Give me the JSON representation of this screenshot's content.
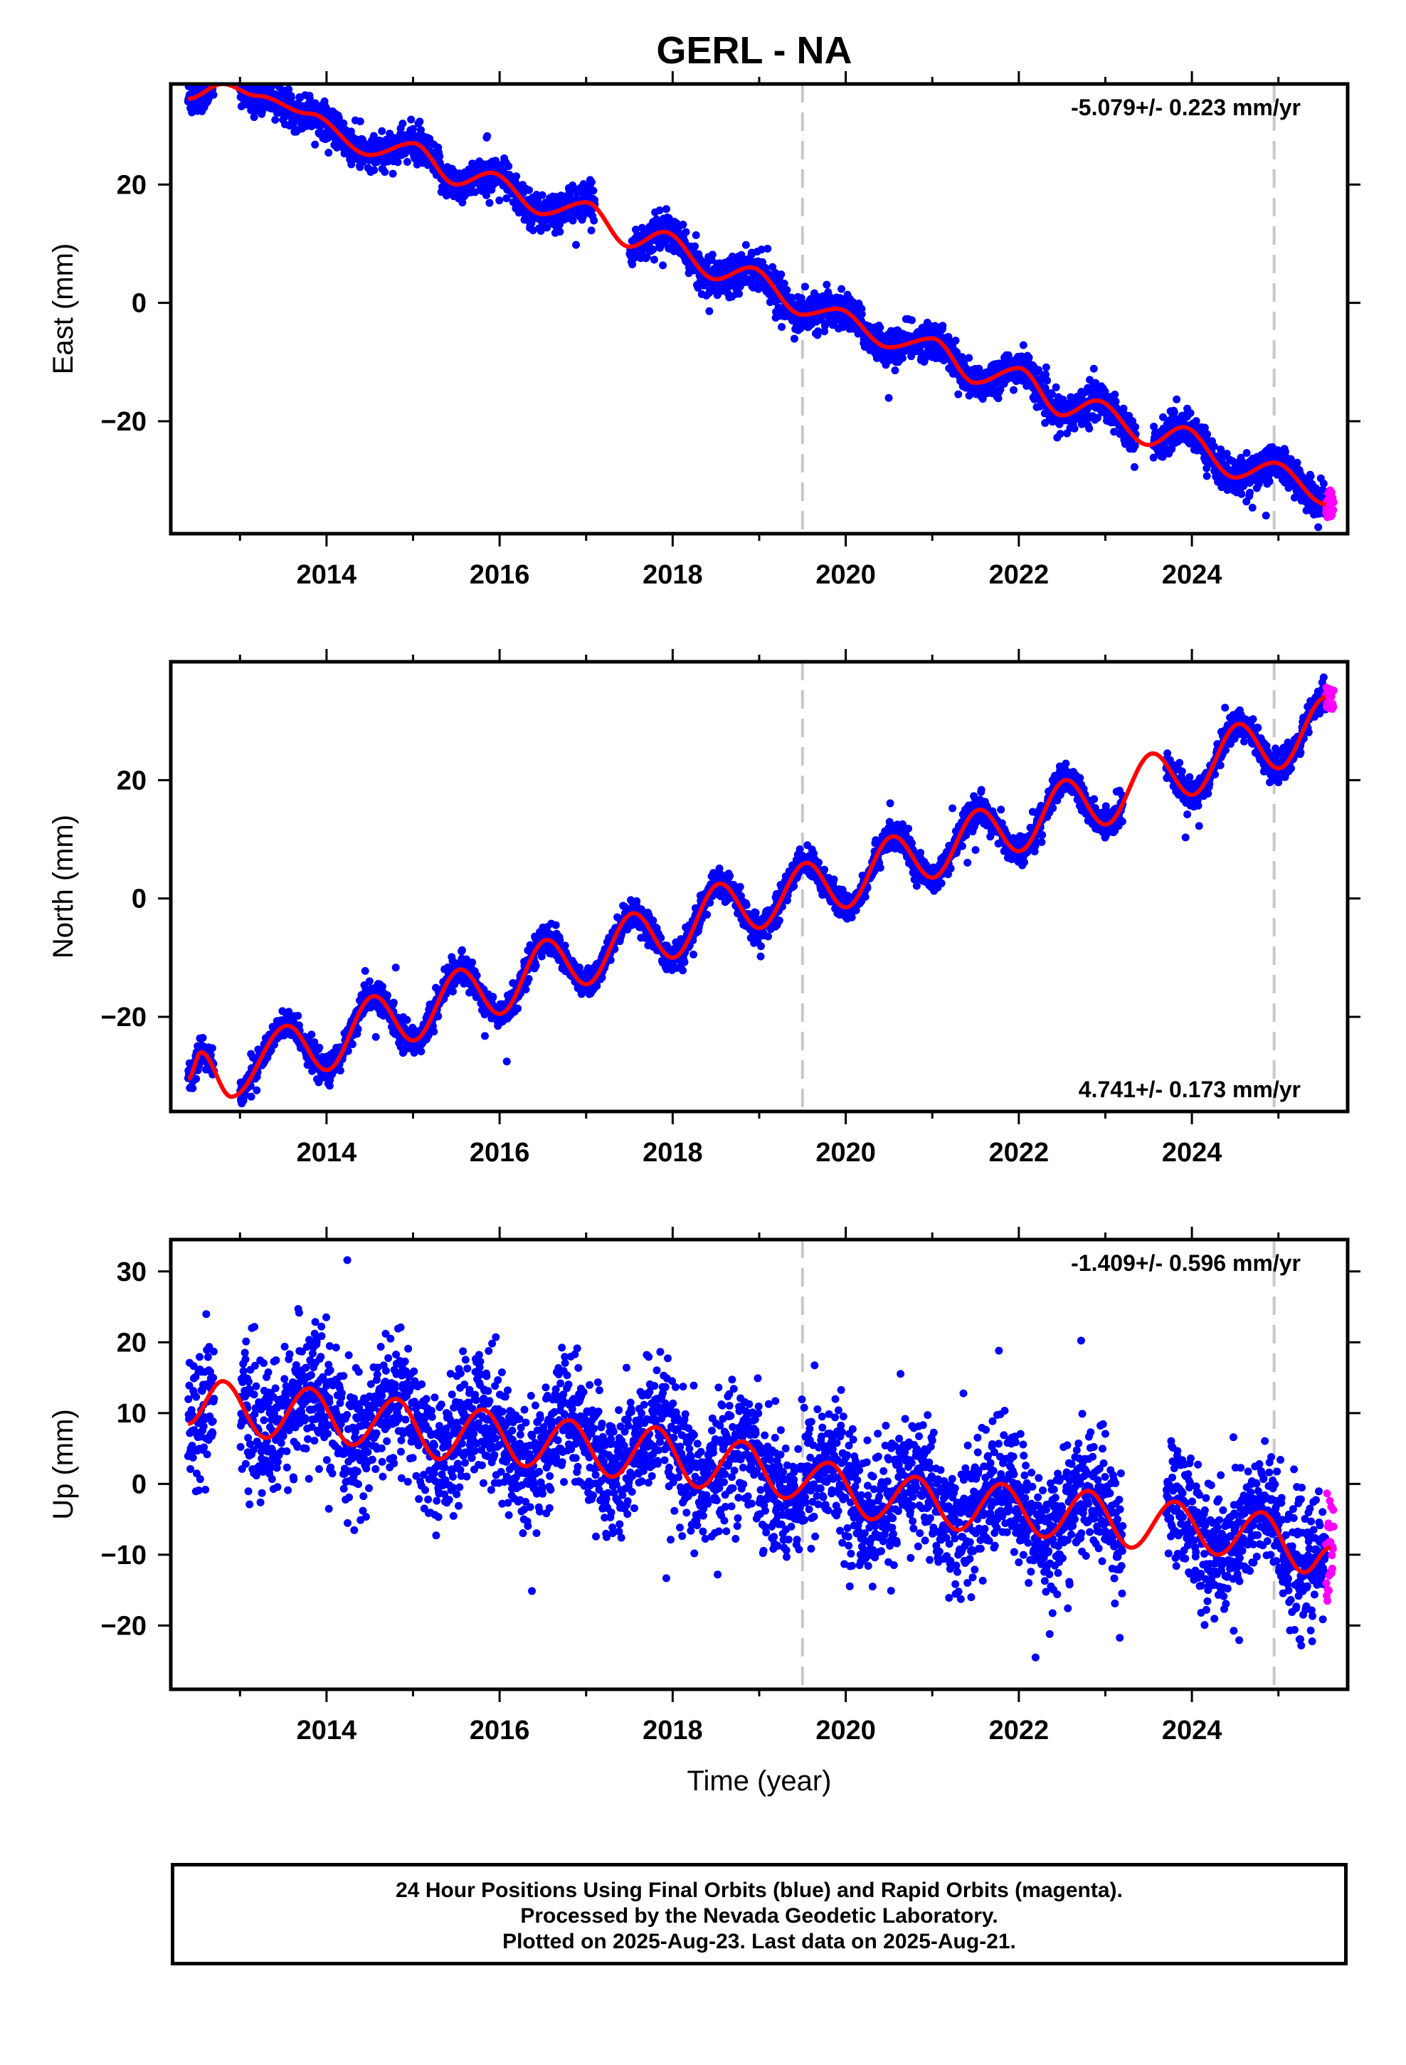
{
  "title": "GERL - NA",
  "footer": {
    "line1": "24 Hour Positions Using Final Orbits (blue) and Rapid Orbits (magenta).",
    "line2": "Processed by the Nevada Geodetic Laboratory.",
    "line3": "Plotted on 2025-Aug-23. Last data on 2025-Aug-21."
  },
  "colors": {
    "final": "#0000ff",
    "rapid": "#ff00ff",
    "model": "#ff0000",
    "event_line": "#c8c8c8"
  },
  "chart_data": [
    {
      "type": "scatter",
      "panel": "east",
      "ylabel": "East (mm)",
      "xlabel": "",
      "rate_label": "-5.079+/- 0.223 mm/yr",
      "rate_position": "top-right",
      "xlim": [
        2012.2,
        2025.8
      ],
      "ylim": [
        -39,
        37
      ],
      "xticks": [
        2014,
        2016,
        2018,
        2020,
        2022,
        2024
      ],
      "yticks": [
        -20,
        0,
        20
      ],
      "event_lines": [
        2019.5,
        2024.95
      ],
      "series": [
        {
          "role": "final-orbits-daily",
          "data_start": 2012.4,
          "data_end": 2025.55,
          "gaps": [
            [
              2012.7,
              2013.0
            ],
            [
              2017.1,
              2017.5
            ],
            [
              2023.35,
              2023.55
            ]
          ],
          "scatter_mm": 1.5
        },
        {
          "role": "rapid-orbits-daily",
          "data_start": 2025.55,
          "data_end": 2025.64
        },
        {
          "role": "model-fit",
          "x": [
            2012.4,
            2012.8,
            2013.2,
            2013.8,
            2014.5,
            2015.0,
            2015.5,
            2015.9,
            2016.5,
            2017.0,
            2017.5,
            2017.9,
            2018.5,
            2018.9,
            2019.5,
            2019.9,
            2020.5,
            2021.0,
            2021.5,
            2022.0,
            2022.5,
            2022.9,
            2023.5,
            2023.9,
            2024.5,
            2024.95,
            2025.55
          ],
          "y": [
            34.5,
            37,
            35,
            32,
            25,
            27,
            20,
            22,
            15,
            17,
            9.5,
            12,
            4,
            6,
            -2,
            -1,
            -7.5,
            -6,
            -13.5,
            -11,
            -19,
            -16.5,
            -24,
            -21,
            -29.5,
            -27,
            -34
          ]
        }
      ]
    },
    {
      "type": "scatter",
      "panel": "north",
      "ylabel": "North (mm)",
      "xlabel": "",
      "rate_label": "4.741+/- 0.173 mm/yr",
      "rate_position": "bottom-right",
      "xlim": [
        2012.2,
        2025.8
      ],
      "ylim": [
        -36,
        40
      ],
      "xticks": [
        2014,
        2016,
        2018,
        2020,
        2022,
        2024
      ],
      "yticks": [
        -20,
        0,
        20
      ],
      "event_lines": [
        2019.5,
        2024.95
      ],
      "series": [
        {
          "role": "final-orbits-daily",
          "data_start": 2012.4,
          "data_end": 2025.55,
          "gaps": [
            [
              2012.7,
              2013.0
            ],
            [
              2023.2,
              2023.7
            ]
          ],
          "scatter_mm": 1.2
        },
        {
          "role": "rapid-orbits-daily",
          "data_start": 2025.55,
          "data_end": 2025.64
        },
        {
          "role": "model-fit",
          "x": [
            2012.4,
            2012.55,
            2012.9,
            2013.55,
            2014.0,
            2014.55,
            2015.0,
            2015.55,
            2016.0,
            2016.55,
            2017.0,
            2017.55,
            2018.0,
            2018.55,
            2019.0,
            2019.55,
            2020.0,
            2020.55,
            2021.0,
            2021.55,
            2022.0,
            2022.55,
            2023.0,
            2023.55,
            2024.0,
            2024.55,
            2025.0,
            2025.55
          ],
          "y": [
            -30.5,
            -26,
            -33.5,
            -21.5,
            -29,
            -16.5,
            -24,
            -12,
            -19.5,
            -7,
            -14.5,
            -2.5,
            -10,
            2.5,
            -5,
            6,
            -1.5,
            10.5,
            3.5,
            15,
            8,
            20,
            12.5,
            24.5,
            17.5,
            29.5,
            22,
            34
          ]
        }
      ]
    },
    {
      "type": "scatter",
      "panel": "up",
      "ylabel": "Up (mm)",
      "xlabel": "Time (year)",
      "rate_label": "-1.409+/- 0.596 mm/yr",
      "rate_position": "top-right",
      "xlim": [
        2012.2,
        2025.8
      ],
      "ylim": [
        -29,
        34.5
      ],
      "xticks": [
        2014,
        2016,
        2018,
        2020,
        2022,
        2024
      ],
      "yticks": [
        -20,
        -10,
        0,
        10,
        20,
        30
      ],
      "event_lines": [
        2019.5,
        2024.95
      ],
      "series": [
        {
          "role": "final-orbits-daily",
          "data_start": 2012.4,
          "data_end": 2025.55,
          "gaps": [
            [
              2012.7,
              2013.0
            ],
            [
              2023.2,
              2023.7
            ]
          ],
          "scatter_mm": 4.5
        },
        {
          "role": "rapid-orbits-daily",
          "data_start": 2025.55,
          "data_end": 2025.64
        },
        {
          "role": "model-fit",
          "x": [
            2012.4,
            2012.8,
            2013.3,
            2013.8,
            2014.3,
            2014.8,
            2015.3,
            2015.8,
            2016.3,
            2016.8,
            2017.3,
            2017.8,
            2018.3,
            2018.8,
            2019.3,
            2019.8,
            2020.3,
            2020.8,
            2021.3,
            2021.8,
            2022.3,
            2022.8,
            2023.3,
            2023.8,
            2024.3,
            2024.8,
            2025.3,
            2025.6
          ],
          "y": [
            8.5,
            14.5,
            6.5,
            13.5,
            5.5,
            12,
            3.5,
            10.5,
            2.5,
            9,
            1,
            8,
            -0.5,
            6,
            -2,
            3,
            -5,
            1,
            -6.5,
            0,
            -7.5,
            -1,
            -9,
            -2.5,
            -10,
            -4,
            -12.5,
            -9
          ]
        }
      ]
    }
  ]
}
